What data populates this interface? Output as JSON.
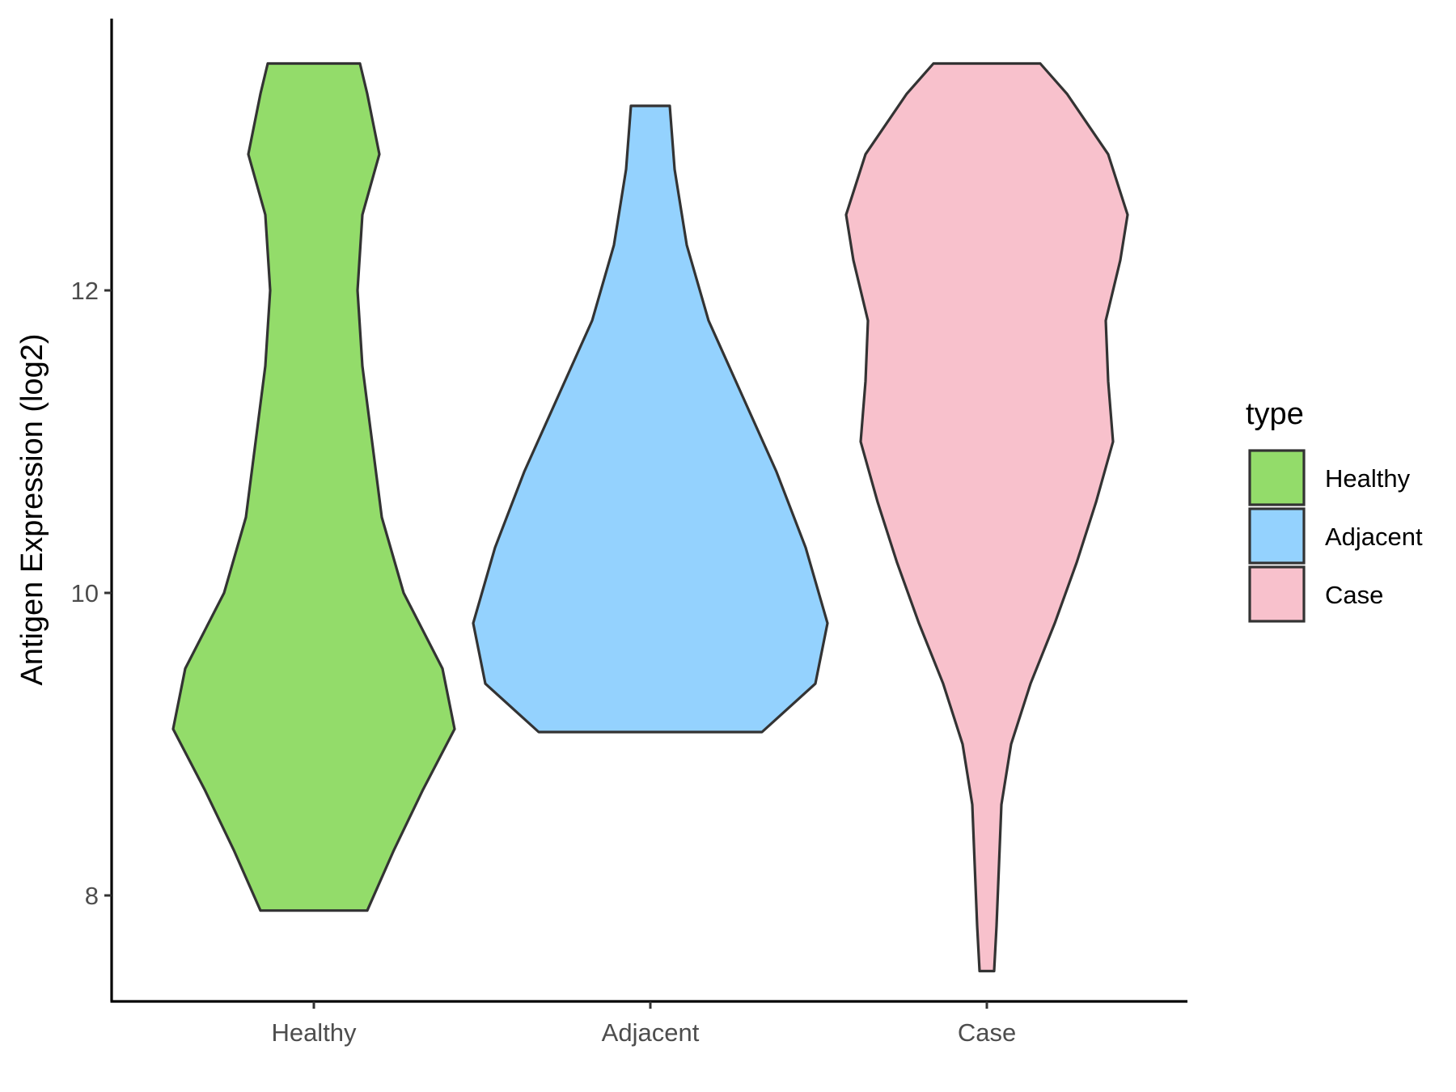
{
  "chart_data": {
    "type": "violin",
    "categories": [
      "Healthy",
      "Adjacent",
      "Case"
    ],
    "ylabel": "Antigen Expression (log2)",
    "xlabel": "",
    "yticks": [
      8,
      10,
      12
    ],
    "ylim": [
      7.3,
      13.85
    ],
    "grid": false,
    "legend": {
      "title": "type",
      "position": "right",
      "entries": [
        "Healthy",
        "Adjacent",
        "Case"
      ]
    },
    "series": [
      {
        "category": "Healthy",
        "color": "#93dc6a",
        "min": 7.9,
        "max": 13.5,
        "profile": [
          [
            7.9,
            0.22
          ],
          [
            8.3,
            0.33
          ],
          [
            8.7,
            0.45
          ],
          [
            9.1,
            0.58
          ],
          [
            9.5,
            0.53
          ],
          [
            10.0,
            0.37
          ],
          [
            10.5,
            0.28
          ],
          [
            11.0,
            0.24
          ],
          [
            11.5,
            0.2
          ],
          [
            12.0,
            0.18
          ],
          [
            12.5,
            0.2
          ],
          [
            12.9,
            0.27
          ],
          [
            13.3,
            0.22
          ],
          [
            13.5,
            0.19
          ]
        ]
      },
      {
        "category": "Adjacent",
        "color": "#94d2fe",
        "min": 9.08,
        "max": 13.22,
        "profile": [
          [
            9.08,
            0.46
          ],
          [
            9.4,
            0.68
          ],
          [
            9.8,
            0.73
          ],
          [
            10.3,
            0.64
          ],
          [
            10.8,
            0.52
          ],
          [
            11.3,
            0.38
          ],
          [
            11.8,
            0.24
          ],
          [
            12.3,
            0.15
          ],
          [
            12.8,
            0.1
          ],
          [
            13.22,
            0.08
          ]
        ]
      },
      {
        "category": "Case",
        "color": "#f8c1cc",
        "min": 7.5,
        "max": 13.5,
        "profile": [
          [
            7.5,
            0.03
          ],
          [
            7.8,
            0.04
          ],
          [
            8.2,
            0.05
          ],
          [
            8.6,
            0.06
          ],
          [
            9.0,
            0.1
          ],
          [
            9.4,
            0.18
          ],
          [
            9.8,
            0.28
          ],
          [
            10.2,
            0.37
          ],
          [
            10.6,
            0.45
          ],
          [
            11.0,
            0.52
          ],
          [
            11.4,
            0.5
          ],
          [
            11.8,
            0.49
          ],
          [
            12.2,
            0.55
          ],
          [
            12.5,
            0.58
          ],
          [
            12.9,
            0.5
          ],
          [
            13.3,
            0.33
          ],
          [
            13.5,
            0.22
          ]
        ]
      }
    ]
  }
}
